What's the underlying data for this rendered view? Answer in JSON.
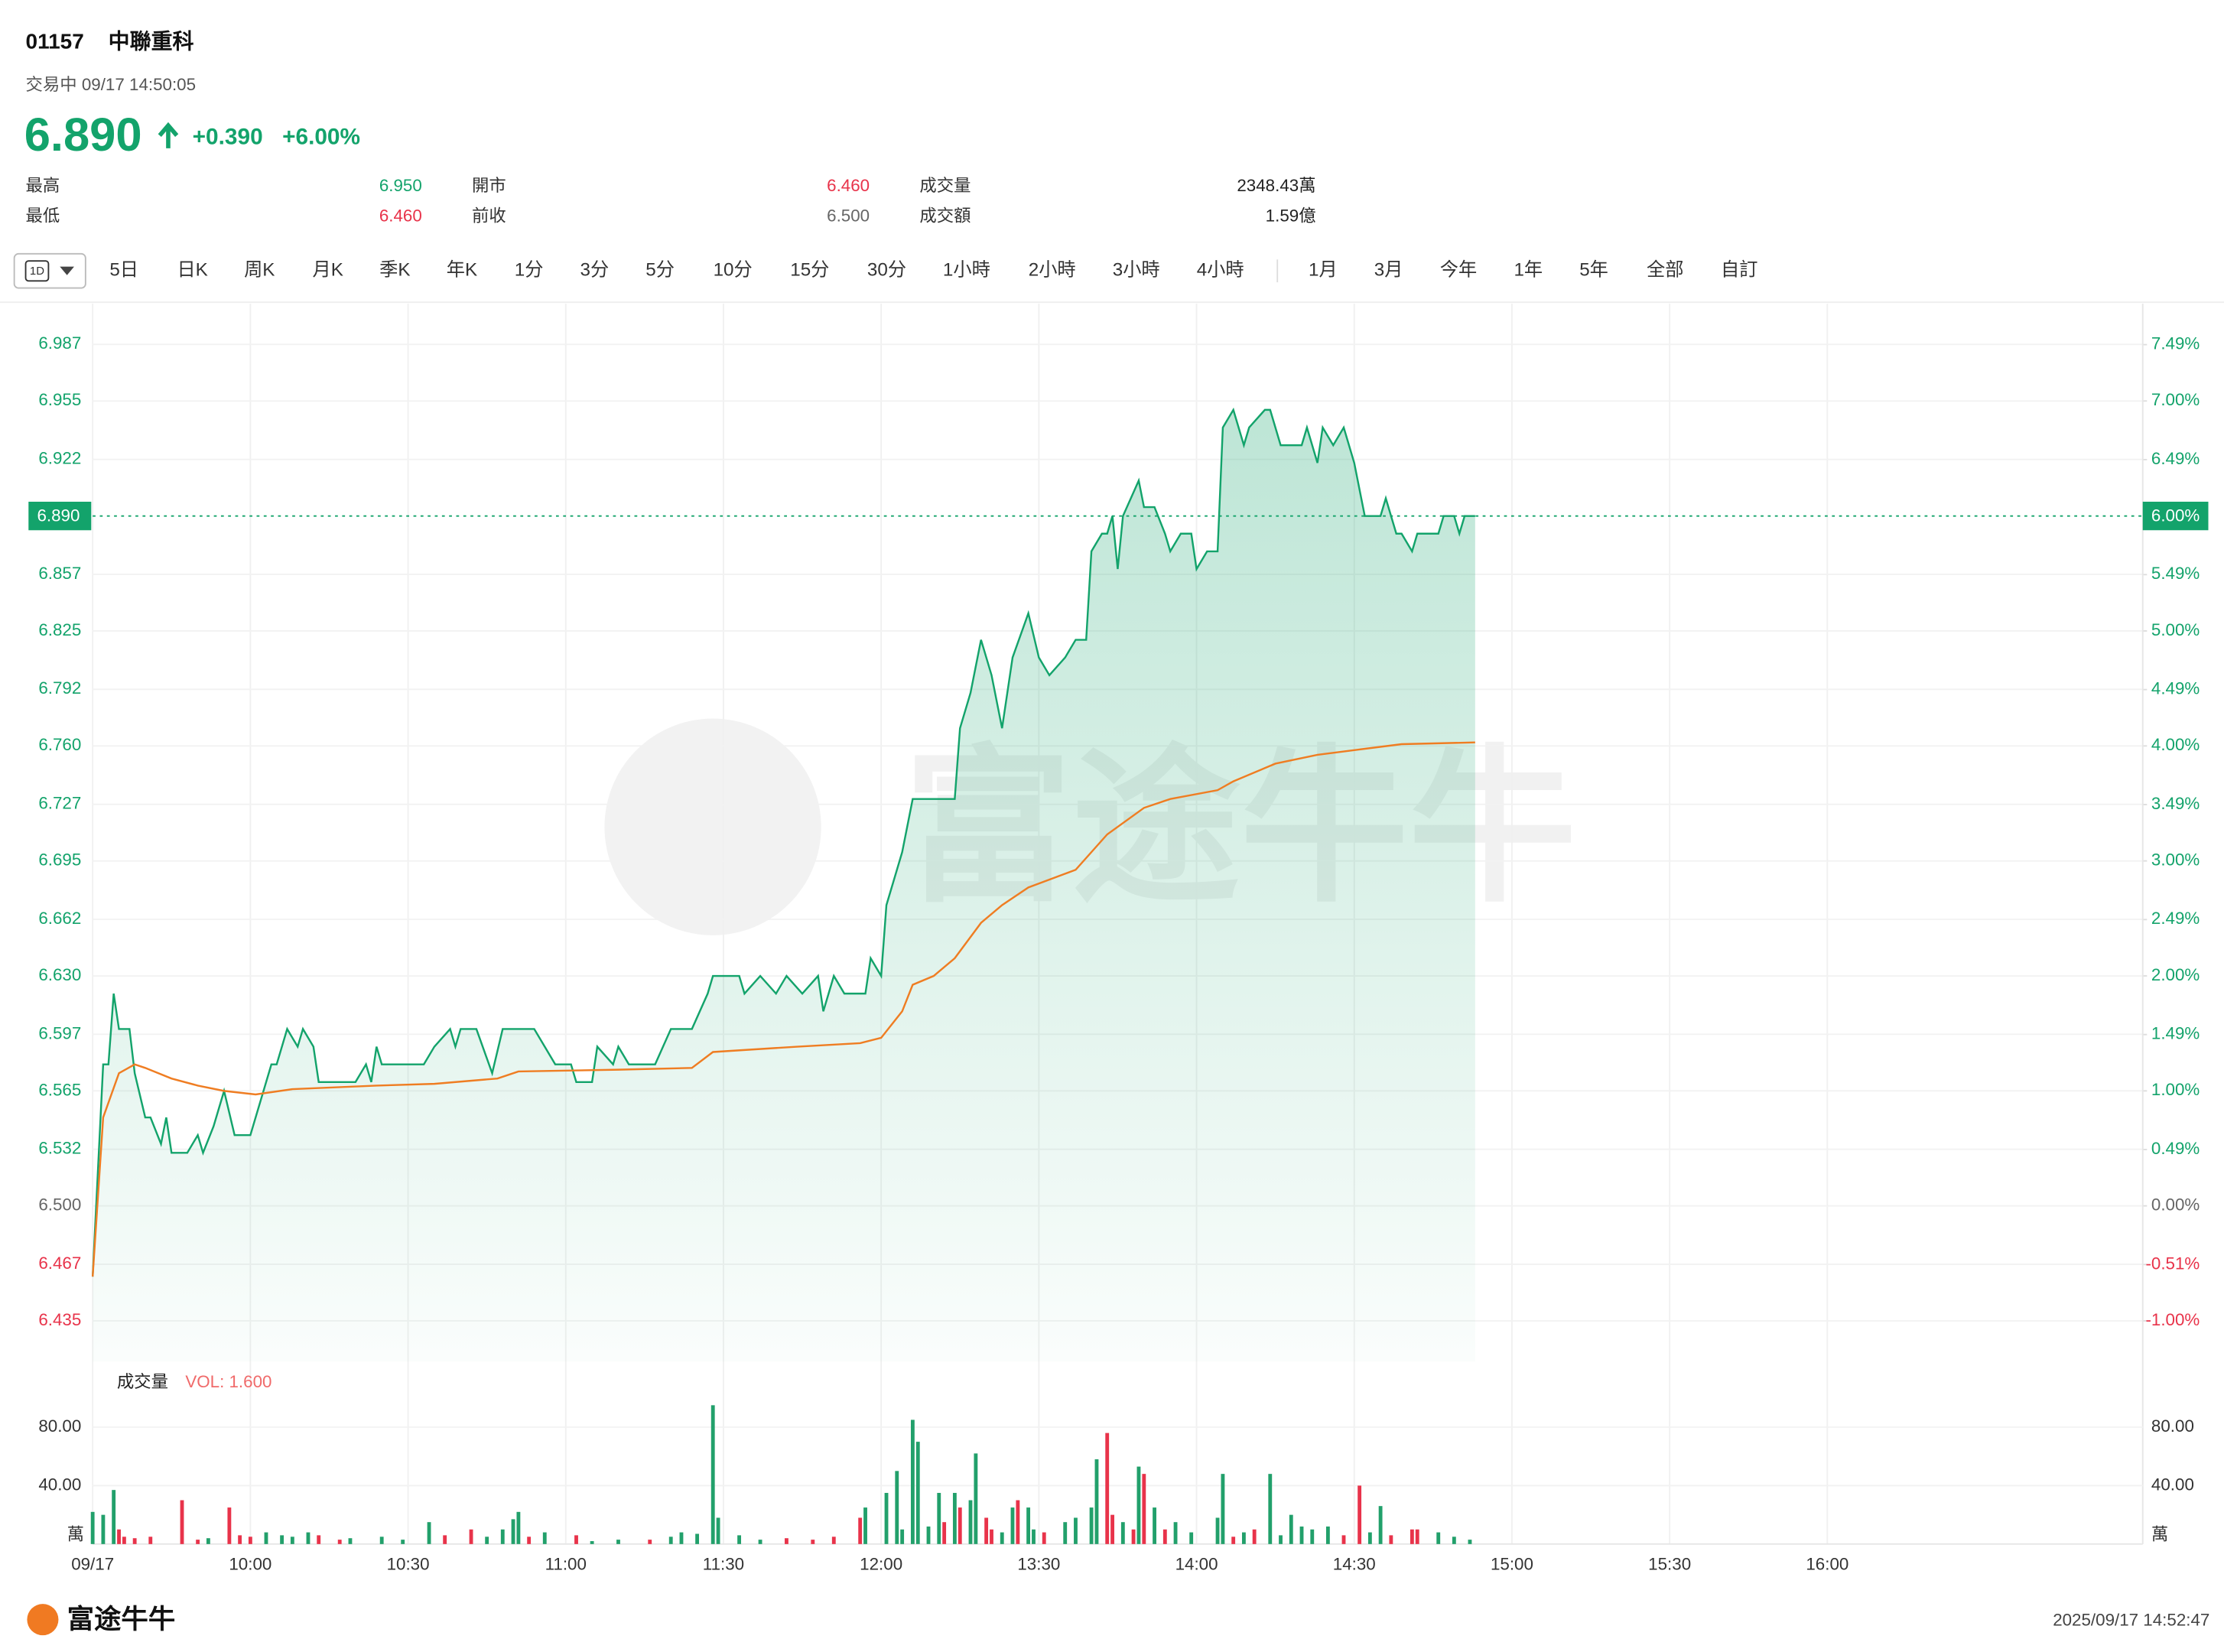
{
  "header": {
    "code": "01157",
    "name": "中聯重科",
    "status": "交易中 09/17 14:50:05",
    "price": "6.890",
    "change": "+0.390",
    "change_pct": "+6.00%"
  },
  "stats": [
    {
      "label": "最高",
      "value": "6.950",
      "color": "#13a36b"
    },
    {
      "label": "開市",
      "value": "6.460",
      "color": "#e8334a"
    },
    {
      "label": "成交量",
      "value": "2348.43萬",
      "color": "#222222"
    },
    {
      "label": "最低",
      "value": "6.460",
      "color": "#e8334a"
    },
    {
      "label": "前收",
      "value": "6.500",
      "color": "#666666"
    },
    {
      "label": "成交額",
      "value": "1.59億",
      "color": "#222222"
    }
  ],
  "tabs": {
    "selected": "1D",
    "items": [
      "5日",
      "日K",
      "周K",
      "月K",
      "季K",
      "年K",
      "1分",
      "3分",
      "5分",
      "10分",
      "15分",
      "30分",
      "1小時",
      "2小時",
      "3小時",
      "4小時"
    ],
    "ranges": [
      "1月",
      "3月",
      "今年",
      "1年",
      "5年",
      "全部",
      "自訂"
    ]
  },
  "watermark": "富途牛牛",
  "footer": {
    "logo": "富途牛牛",
    "timestamp": "2025/09/17 14:52:47"
  },
  "chart_data": [
    {
      "type": "line",
      "baseline": 6.5,
      "grid": true,
      "fill": true,
      "xlim": [
        0,
        390
      ],
      "ylim": [
        6.412,
        7.01
      ],
      "y2lim": [
        -1.354,
        7.846
      ],
      "yticks": [
        6.987,
        6.955,
        6.922,
        6.857,
        6.825,
        6.792,
        {
          "value": 6.76,
          "label": "6.760"
        },
        6.727,
        6.695,
        6.662,
        {
          "value": 6.63,
          "label": "6.630"
        },
        6.597,
        6.565,
        6.532,
        {
          "value": 6.5,
          "label": "6.500"
        },
        6.467,
        6.435
      ],
      "y2ticks": [
        {
          "value": 7.49,
          "label": "7.49%"
        },
        {
          "value": 7,
          "label": "7.00%"
        },
        {
          "value": 6.49,
          "label": "6.49%"
        },
        {
          "value": 5.49,
          "label": "5.49%"
        },
        {
          "value": 5,
          "label": "5.00%"
        },
        {
          "value": 4.49,
          "label": "4.49%"
        },
        {
          "value": 4,
          "label": "4.00%"
        },
        {
          "value": 3.49,
          "label": "3.49%"
        },
        {
          "value": 3,
          "label": "3.00%"
        },
        {
          "value": 2.49,
          "label": "2.49%"
        },
        {
          "value": 2,
          "label": "2.00%"
        },
        {
          "value": 1.49,
          "label": "1.49%"
        },
        {
          "value": 1,
          "label": "1.00%"
        },
        {
          "value": 0.49,
          "label": "0.49%"
        },
        {
          "value": 0,
          "label": "0.00%"
        },
        {
          "value": -0.51,
          "label": "-0.51%"
        },
        {
          "value": -1,
          "label": "-1.00%"
        }
      ],
      "marker": {
        "value": 6.89,
        "label": "6.890"
      },
      "y2_marker": {
        "value": 6,
        "label": "6.00%"
      },
      "marker_color": "#13a36b",
      "series": [
        {
          "color": "#13a36b",
          "x": [
            0,
            1,
            2,
            3,
            4,
            5,
            7,
            8,
            10,
            11,
            13,
            14,
            15,
            17,
            18,
            20,
            21,
            23,
            25,
            27,
            30,
            31,
            32,
            34,
            35,
            37,
            39,
            40,
            42,
            43,
            50,
            52,
            53,
            54,
            55,
            58,
            63,
            65,
            68,
            69,
            70,
            73,
            76,
            78,
            84,
            86,
            88,
            91,
            92,
            95,
            96,
            99,
            100,
            102,
            107,
            110,
            114,
            117,
            118,
            123,
            124,
            127,
            130,
            132,
            135,
            138,
            139,
            141,
            143,
            147,
            148,
            150,
            151,
            154,
            156,
            164,
            165,
            167,
            169,
            171,
            173,
            175,
            178,
            180,
            182,
            185,
            187,
            189,
            190,
            192,
            193,
            194,
            195,
            196,
            199,
            200,
            202,
            204,
            205,
            207,
            209,
            210,
            212,
            214,
            215,
            217,
            219,
            220,
            223,
            224,
            226,
            230,
            231,
            233,
            234,
            236,
            238,
            240,
            242,
            243,
            245,
            246,
            248,
            249,
            251,
            252,
            254,
            256,
            257,
            259,
            260,
            261,
            263
          ],
          "values": [
            6.46,
            6.52,
            6.58,
            6.58,
            6.62,
            6.6,
            6.6,
            6.575,
            6.55,
            6.55,
            6.535,
            6.55,
            6.53,
            6.53,
            6.53,
            6.54,
            6.53,
            6.545,
            6.565,
            6.54,
            6.54,
            6.55,
            6.56,
            6.58,
            6.58,
            6.6,
            6.59,
            6.6,
            6.59,
            6.57,
            6.57,
            6.58,
            6.57,
            6.59,
            6.58,
            6.58,
            6.58,
            6.59,
            6.6,
            6.59,
            6.6,
            6.6,
            6.575,
            6.6,
            6.6,
            6.59,
            6.58,
            6.58,
            6.57,
            6.57,
            6.59,
            6.58,
            6.59,
            6.58,
            6.58,
            6.6,
            6.6,
            6.62,
            6.63,
            6.63,
            6.62,
            6.63,
            6.62,
            6.63,
            6.62,
            6.63,
            6.61,
            6.63,
            6.62,
            6.62,
            6.64,
            6.63,
            6.67,
            6.7,
            6.73,
            6.73,
            6.77,
            6.79,
            6.82,
            6.8,
            6.77,
            6.81,
            6.835,
            6.81,
            6.8,
            6.81,
            6.82,
            6.82,
            6.87,
            6.88,
            6.88,
            6.89,
            6.86,
            6.89,
            6.91,
            6.895,
            6.895,
            6.88,
            6.87,
            6.88,
            6.88,
            6.86,
            6.87,
            6.87,
            6.94,
            6.95,
            6.93,
            6.94,
            6.95,
            6.95,
            6.93,
            6.93,
            6.94,
            6.92,
            6.94,
            6.93,
            6.94,
            6.92,
            6.89,
            6.89,
            6.89,
            6.9,
            6.88,
            6.88,
            6.87,
            6.88,
            6.88,
            6.88,
            6.89,
            6.89,
            6.88,
            6.89,
            6.89
          ]
        },
        {
          "color": "#ef7d22",
          "x": [
            0,
            2,
            5,
            8,
            10,
            15,
            20,
            25,
            31,
            38,
            54,
            65,
            77,
            81,
            100,
            114,
            118,
            134,
            146,
            150,
            154,
            156,
            160,
            164,
            169,
            173,
            178,
            187,
            193,
            200,
            205,
            214,
            217,
            225,
            233,
            241,
            249,
            263
          ],
          "values": [
            6.46,
            6.55,
            6.575,
            6.58,
            6.578,
            6.572,
            6.568,
            6.565,
            6.563,
            6.566,
            6.568,
            6.569,
            6.572,
            6.576,
            6.577,
            6.578,
            6.587,
            6.59,
            6.592,
            6.595,
            6.61,
            6.625,
            6.63,
            6.64,
            6.66,
            6.67,
            6.68,
            6.69,
            6.71,
            6.725,
            6.73,
            6.735,
            6.74,
            6.75,
            6.755,
            6.758,
            6.761,
            6.762
          ]
        }
      ]
    },
    {
      "type": "bar",
      "title": "成交量",
      "annotation": "VOL: 1.600",
      "grid": true,
      "xlim": [
        0,
        390
      ],
      "ylim": [
        0,
        120
      ],
      "yticks": [
        {
          "value": 80,
          "label": "80.00"
        },
        {
          "value": 40,
          "label": "40.00"
        },
        {
          "value": 0,
          "label": "萬"
        }
      ],
      "xticks": [
        {
          "value": 0,
          "label": "09/17"
        },
        {
          "value": 30,
          "label": "10:00"
        },
        {
          "value": 60,
          "label": "10:30"
        },
        {
          "value": 90,
          "label": "11:00"
        },
        {
          "value": 120,
          "label": "11:30"
        },
        {
          "value": 150,
          "label": "12:00"
        },
        {
          "value": 180,
          "label": "13:30"
        },
        {
          "value": 210,
          "label": "14:00"
        },
        {
          "value": 240,
          "label": "14:30"
        },
        {
          "value": 270,
          "label": "15:00"
        },
        {
          "value": 300,
          "label": "15:30"
        },
        {
          "value": 330,
          "label": "16:00"
        }
      ],
      "x": [
        0,
        2,
        4,
        5,
        6,
        8,
        11,
        17,
        20,
        22,
        26,
        28,
        30,
        33,
        36,
        38,
        41,
        43,
        47,
        49,
        55,
        59,
        64,
        67,
        72,
        75,
        78,
        80,
        81,
        83,
        86,
        92,
        95,
        100,
        106,
        110,
        112,
        115,
        118,
        119,
        123,
        127,
        132,
        137,
        141,
        146,
        147,
        151,
        153,
        154,
        156,
        157,
        159,
        161,
        162,
        164,
        165,
        167,
        168,
        170,
        171,
        173,
        175,
        176,
        178,
        179,
        181,
        185,
        187,
        190,
        191,
        193,
        194,
        196,
        198,
        199,
        200,
        202,
        204,
        206,
        209,
        214,
        215,
        217,
        219,
        221,
        224,
        226,
        228,
        230,
        232,
        235,
        238,
        241,
        243,
        245,
        247,
        251,
        252,
        256,
        259,
        262
      ],
      "values": [
        22,
        20,
        37,
        10,
        5,
        4,
        5,
        30,
        3,
        4,
        25,
        6,
        5,
        8,
        6,
        5,
        8,
        6,
        3,
        4,
        5,
        3,
        15,
        6,
        10,
        5,
        10,
        17,
        22,
        5,
        8,
        6,
        2,
        3,
        3,
        5,
        8,
        7,
        95,
        18,
        6,
        3,
        4,
        3,
        5,
        18,
        25,
        35,
        50,
        10,
        85,
        70,
        12,
        35,
        15,
        35,
        25,
        30,
        62,
        18,
        10,
        8,
        25,
        30,
        25,
        10,
        8,
        15,
        18,
        25,
        58,
        76,
        20,
        15,
        10,
        53,
        48,
        25,
        10,
        15,
        8,
        18,
        48,
        5,
        8,
        10,
        48,
        6,
        20,
        12,
        10,
        12,
        6,
        40,
        8,
        26,
        6,
        10,
        10,
        8,
        5,
        3
      ],
      "colors": [
        "#22a06b",
        "#22a06b",
        "#22a06b",
        "#e8334a",
        "#e8334a",
        "#e8334a",
        "#e8334a",
        "#e8334a",
        "#e8334a",
        "#22a06b",
        "#e8334a",
        "#e8334a",
        "#e8334a",
        "#22a06b",
        "#22a06b",
        "#22a06b",
        "#22a06b",
        "#e8334a",
        "#e8334a",
        "#22a06b",
        "#22a06b",
        "#22a06b",
        "#22a06b",
        "#e8334a",
        "#e8334a",
        "#22a06b",
        "#22a06b",
        "#22a06b",
        "#22a06b",
        "#e8334a",
        "#22a06b",
        "#e8334a",
        "#22a06b",
        "#22a06b",
        "#e8334a",
        "#22a06b",
        "#22a06b",
        "#22a06b",
        "#22a06b",
        "#22a06b",
        "#22a06b",
        "#22a06b",
        "#e8334a",
        "#e8334a",
        "#e8334a",
        "#e8334a",
        "#22a06b",
        "#22a06b",
        "#22a06b",
        "#22a06b",
        "#22a06b",
        "#22a06b",
        "#22a06b",
        "#22a06b",
        "#e8334a",
        "#22a06b",
        "#e8334a",
        "#22a06b",
        "#22a06b",
        "#e8334a",
        "#e8334a",
        "#22a06b",
        "#22a06b",
        "#e8334a",
        "#22a06b",
        "#22a06b",
        "#e8334a",
        "#22a06b",
        "#22a06b",
        "#22a06b",
        "#22a06b",
        "#e8334a",
        "#e8334a",
        "#22a06b",
        "#e8334a",
        "#22a06b",
        "#e8334a",
        "#22a06b",
        "#e8334a",
        "#22a06b",
        "#22a06b",
        "#22a06b",
        "#22a06b",
        "#e8334a",
        "#22a06b",
        "#e8334a",
        "#22a06b",
        "#22a06b",
        "#22a06b",
        "#22a06b",
        "#22a06b",
        "#22a06b",
        "#e8334a",
        "#e8334a",
        "#22a06b",
        "#22a06b",
        "#e8334a",
        "#e8334a",
        "#e8334a",
        "#22a06b",
        "#22a06b",
        "#22a06b"
      ]
    }
  ]
}
